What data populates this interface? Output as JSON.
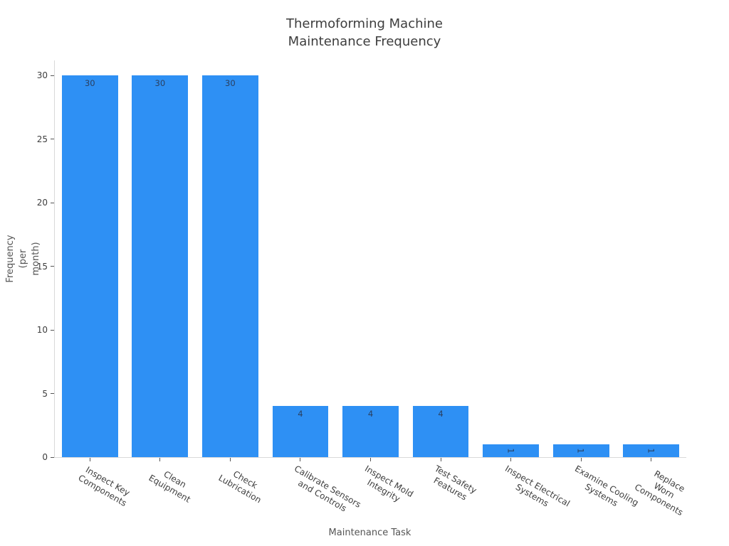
{
  "chart_data": {
    "type": "bar",
    "title": "Thermoforming Machine\nMaintenance Frequency",
    "xlabel": "Maintenance Task",
    "ylabel": "Frequency\n(per month)",
    "categories": [
      "Inspect Key\nComponents",
      "Clean\nEquipment",
      "Check\nLubrication",
      "Calibrate Sensors\nand Controls",
      "Inspect Mold\nIntegrity",
      "Test Safety\nFeatures",
      "Inspect Electrical\nSystems",
      "Examine Cooling\nSystems",
      "Replace Worn\nComponents"
    ],
    "values": [
      30,
      30,
      30,
      4,
      4,
      4,
      1,
      1,
      1
    ],
    "bar_value_labels": [
      "30",
      "30",
      "30",
      "4",
      "4",
      "4",
      "1",
      "1",
      "1"
    ],
    "yticks": [
      0,
      5,
      10,
      15,
      20,
      25,
      30
    ],
    "ylim": [
      0,
      31.2
    ],
    "grid": false,
    "legend": false,
    "x_tick_angle_deg": 30,
    "colors": {
      "bar": "#2e90f4",
      "bar_value_label": "#2a3f5f",
      "axis_line": "#d9d9d9",
      "tick_mark": "#555555",
      "tick_label": "#3d3d3d",
      "title": "#3d3d3d",
      "axis_title": "#555555",
      "background": "#ffffff"
    }
  }
}
